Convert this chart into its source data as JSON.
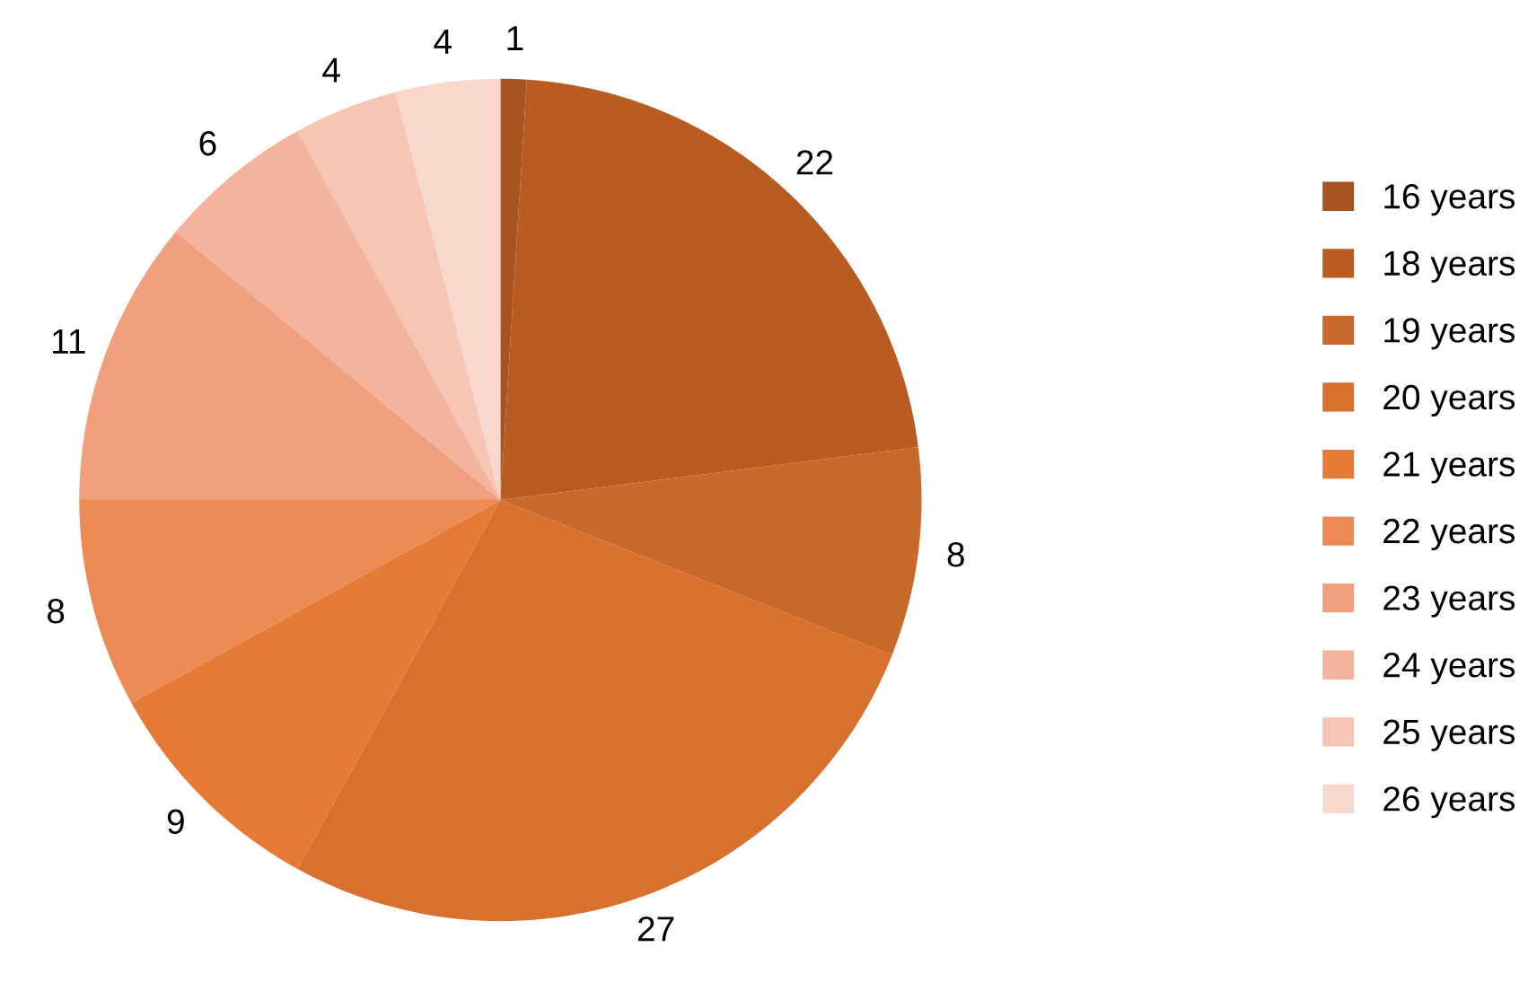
{
  "chart_data": {
    "type": "pie",
    "categories": [
      "16 years",
      "18 years",
      "19 years",
      "20 years",
      "21 years",
      "22 years",
      "23 years",
      "24 years",
      "25 years",
      "26 years"
    ],
    "values": [
      1,
      22,
      8,
      27,
      9,
      8,
      11,
      6,
      4,
      4
    ],
    "colors": [
      "#a65420",
      "#b85c22",
      "#c8682a",
      "#d8712e",
      "#e57b34",
      "#ec8b55",
      "#f0a07e",
      "#f3b39c",
      "#f6c5b6",
      "#f8d7cd"
    ],
    "data_labels": true,
    "legend": "right"
  }
}
